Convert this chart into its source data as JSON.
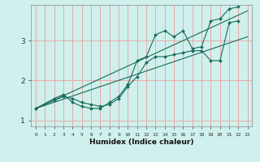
{
  "xlabel": "Humidex (Indice chaleur)",
  "bg_color": "#cff0ec",
  "grid_color": "#e8a0a0",
  "line_color": "#1a6b5a",
  "xlim": [
    -0.5,
    23.5
  ],
  "ylim": [
    0.85,
    3.9
  ],
  "yticks": [
    1,
    2,
    3
  ],
  "xticks": [
    0,
    1,
    2,
    3,
    4,
    5,
    6,
    7,
    8,
    9,
    10,
    11,
    12,
    13,
    14,
    15,
    16,
    17,
    18,
    19,
    20,
    21,
    22,
    23
  ],
  "lines": [
    {
      "x": [
        0,
        23
      ],
      "y": [
        1.3,
        3.75
      ]
    },
    {
      "x": [
        0,
        23
      ],
      "y": [
        1.3,
        3.1
      ]
    },
    {
      "x": [
        0,
        2,
        3,
        4,
        5,
        6,
        7,
        8,
        9,
        10,
        11,
        12,
        13,
        14,
        15,
        16,
        17,
        18,
        19,
        20,
        21,
        22,
        23
      ],
      "y": [
        1.3,
        1.55,
        1.65,
        1.45,
        1.35,
        1.3,
        1.3,
        1.45,
        1.6,
        1.9,
        2.5,
        2.6,
        3.15,
        3.25,
        3.1,
        3.25,
        2.8,
        2.85,
        3.5,
        3.55,
        3.8,
        3.85,
        null
      ]
    },
    {
      "x": [
        0,
        2,
        3,
        4,
        5,
        6,
        7,
        8,
        9,
        10,
        11,
        12,
        13,
        14,
        15,
        16,
        17,
        18,
        19,
        20,
        21,
        22,
        23
      ],
      "y": [
        1.3,
        1.5,
        1.6,
        1.55,
        1.45,
        1.4,
        1.35,
        1.4,
        1.55,
        1.85,
        2.1,
        2.45,
        2.6,
        2.6,
        2.65,
        2.7,
        2.75,
        2.75,
        2.5,
        2.5,
        3.45,
        3.5,
        null
      ]
    }
  ]
}
